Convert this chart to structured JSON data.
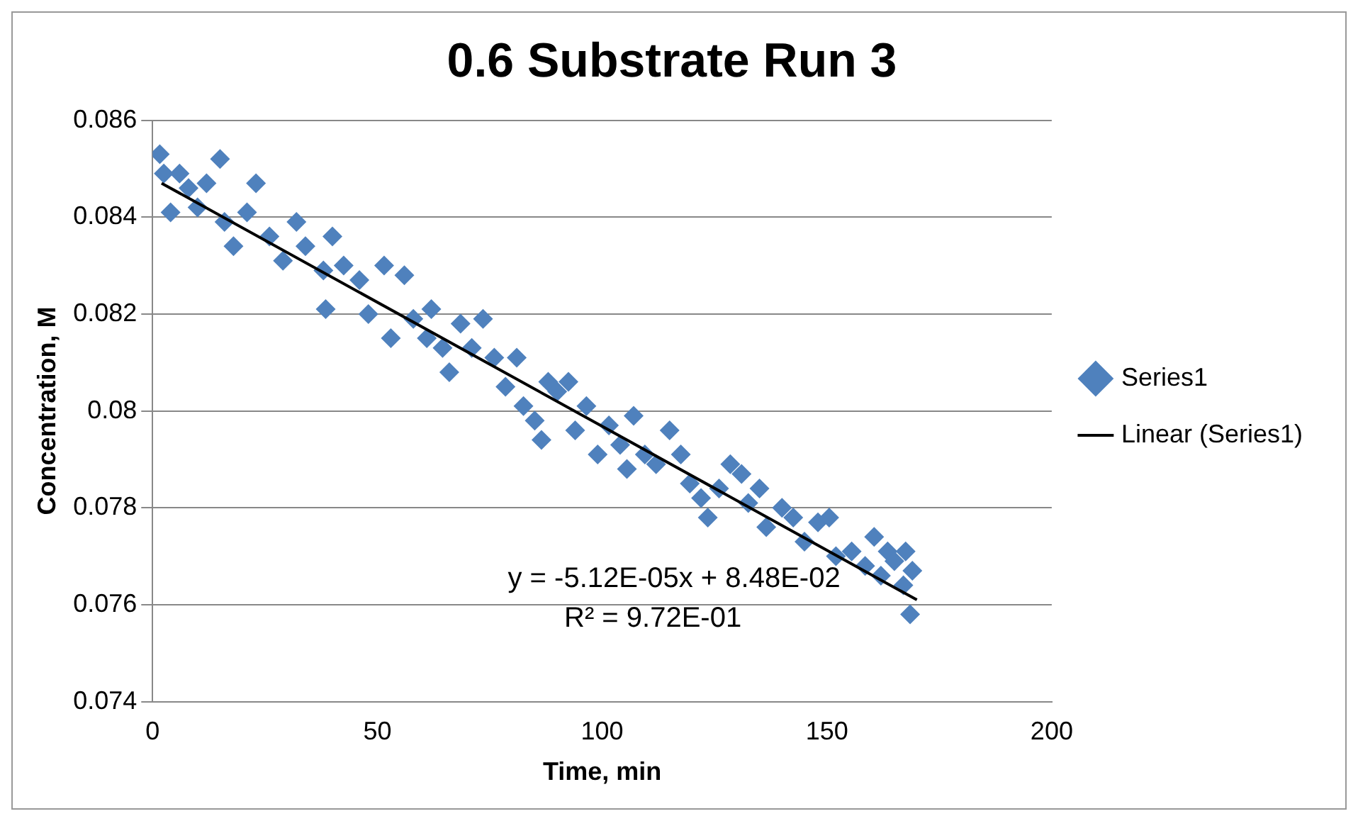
{
  "chart_data": {
    "type": "scatter",
    "title": "0.6 Substrate Run 3",
    "xlabel": "Time, min",
    "ylabel": "Concentration, M",
    "xlim": [
      0,
      200
    ],
    "xticks": [
      0,
      50,
      100,
      150,
      200
    ],
    "ylim": [
      0.074,
      0.086
    ],
    "yticks": [
      0.074,
      0.076,
      0.078,
      0.08,
      0.082,
      0.084,
      0.086
    ],
    "grid": "y",
    "legend": "right",
    "marker": "diamond",
    "annotations": [
      "y = -5.12E-05x + 8.48E-02",
      "R² = 9.72E-01"
    ],
    "series": [
      {
        "name": "Series1",
        "color": "#4f81bd",
        "x": [
          1.6,
          2.5,
          4,
          6,
          8,
          10,
          12,
          15,
          16,
          18,
          21,
          23,
          26,
          29,
          32,
          34,
          38,
          38.5,
          40,
          42.5,
          46,
          48,
          51.5,
          53,
          56,
          58,
          61,
          62,
          64.5,
          66,
          68.5,
          71,
          73.5,
          76,
          78.5,
          81,
          82.5,
          85,
          86.5,
          88,
          90,
          92.5,
          94,
          96.5,
          99,
          101.5,
          104,
          105.5,
          107,
          109.5,
          112,
          115,
          117.5,
          119.5,
          122,
          123.5,
          126,
          128.5,
          131,
          132.5,
          135,
          136.5,
          140,
          142.5,
          145,
          148,
          150.5,
          152,
          155.5,
          158.5,
          160.5,
          162,
          163.5,
          165,
          167,
          167.5,
          169,
          168.5
        ],
        "values": [
          0.0853,
          0.0849,
          0.0841,
          0.0849,
          0.0846,
          0.0842,
          0.0847,
          0.0852,
          0.0839,
          0.0834,
          0.0841,
          0.0847,
          0.0836,
          0.0831,
          0.0839,
          0.0834,
          0.0829,
          0.0821,
          0.0836,
          0.083,
          0.0827,
          0.082,
          0.083,
          0.0815,
          0.0828,
          0.0819,
          0.0815,
          0.0821,
          0.0813,
          0.0808,
          0.0818,
          0.0813,
          0.0819,
          0.0811,
          0.0805,
          0.0811,
          0.0801,
          0.0798,
          0.0794,
          0.0806,
          0.0804,
          0.0806,
          0.0796,
          0.0801,
          0.0791,
          0.0797,
          0.0793,
          0.0788,
          0.0799,
          0.0791,
          0.0789,
          0.0796,
          0.0791,
          0.0785,
          0.0782,
          0.0778,
          0.0784,
          0.0789,
          0.0787,
          0.0781,
          0.0784,
          0.0776,
          0.078,
          0.0778,
          0.0773,
          0.0777,
          0.0778,
          0.077,
          0.0771,
          0.0768,
          0.0774,
          0.0766,
          0.0771,
          0.0769,
          0.0764,
          0.0771,
          0.0767,
          0.0758
        ]
      },
      {
        "name": "Linear (Series1)",
        "type": "line",
        "color": "#000000",
        "marker": "none",
        "line_style": "solid",
        "x": [
          2,
          170
        ],
        "values": [
          0.0847,
          0.0761
        ]
      }
    ]
  }
}
